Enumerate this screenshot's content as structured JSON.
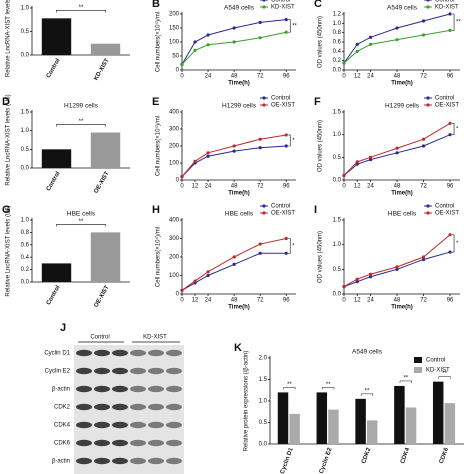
{
  "chart_data": [
    {
      "type": "bar",
      "y_label": "Relative LncRNA-XIST levels (U6)",
      "categories": [
        "Control",
        "KD-XIST"
      ],
      "values": [
        0.78,
        0.24
      ],
      "colors": [
        "#111111",
        "#999999"
      ],
      "ylim": [
        0,
        1.0
      ],
      "yticks": [
        {
          "value": 0,
          "label": "0.0"
        },
        {
          "value": 0.5,
          "label": "0.5"
        },
        {
          "value": 1.0,
          "label": "1.0"
        }
      ],
      "annotation": "**"
    },
    {
      "type": "line",
      "panel": "B",
      "title": "A549 cells",
      "y_label": "Cell numbers(×10⁴)/ml",
      "x_label": "Time(h)",
      "x": [
        0,
        12,
        24,
        48,
        72,
        96
      ],
      "series": [
        {
          "name": "Control",
          "color": "#2b2b8f",
          "values": [
            20,
            100,
            125,
            150,
            170,
            180
          ]
        },
        {
          "name": "KD-XIST",
          "color": "#3aa02d",
          "values": [
            20,
            70,
            90,
            100,
            115,
            135
          ]
        }
      ],
      "xlim": [
        0,
        105
      ],
      "xticks": [
        0,
        24,
        48,
        72,
        96
      ],
      "ylim": [
        0,
        200
      ],
      "yticks": [
        0,
        50,
        100,
        150,
        200
      ],
      "annotation": "**"
    },
    {
      "type": "line",
      "panel": "C",
      "title": "A549 cells",
      "y_label": "OD values (450nm)",
      "x_label": "Time(h)",
      "x": [
        0,
        12,
        24,
        48,
        72,
        96
      ],
      "series": [
        {
          "name": "Control",
          "color": "#2b2b8f",
          "values": [
            0.15,
            0.55,
            0.7,
            0.9,
            1.05,
            1.2
          ]
        },
        {
          "name": "KD-XIST",
          "color": "#3aa02d",
          "values": [
            0.15,
            0.4,
            0.55,
            0.65,
            0.75,
            0.85
          ]
        }
      ],
      "xlim": [
        0,
        105
      ],
      "xticks": [
        0,
        12,
        24,
        48,
        72,
        96
      ],
      "ylim": [
        0,
        1.2
      ],
      "yticks": [
        {
          "value": 0,
          "label": "0.0"
        },
        {
          "value": 0.2,
          "label": "0.2"
        },
        {
          "value": 0.4,
          "label": "0.4"
        },
        {
          "value": 0.6,
          "label": "0.6"
        },
        {
          "value": 0.8,
          "label": "0.8"
        },
        {
          "value": 1.0,
          "label": "1.0"
        },
        {
          "value": 1.2,
          "label": "1.2"
        }
      ],
      "annotation": "**"
    },
    {
      "type": "bar",
      "panel": "D",
      "title": "H1299 cells",
      "y_label": "Relative LncRNA-XIST levels (U6)",
      "categories": [
        "Control",
        "OE-XIST"
      ],
      "values": [
        0.5,
        0.95
      ],
      "colors": [
        "#111111",
        "#999999"
      ],
      "ylim": [
        0,
        1.5
      ],
      "yticks": [
        {
          "value": 0,
          "label": "0.0"
        },
        {
          "value": 0.5,
          "label": "0.5"
        },
        {
          "value": 1.0,
          "label": "1.0"
        },
        {
          "value": 1.5,
          "label": "1.5"
        }
      ],
      "annotation": "**"
    },
    {
      "type": "line",
      "panel": "E",
      "title": "H1299 cells",
      "y_label": "Cell numbers(×10⁴)/ml",
      "x_label": "Time(h)",
      "x": [
        0,
        12,
        24,
        48,
        72,
        96
      ],
      "series": [
        {
          "name": "Control",
          "color": "#2b2b8f",
          "values": [
            20,
            100,
            140,
            170,
            190,
            200
          ]
        },
        {
          "name": "OE-XIST",
          "color": "#c0282d",
          "values": [
            20,
            110,
            160,
            200,
            240,
            265
          ]
        }
      ],
      "xlim": [
        0,
        105
      ],
      "xticks": [
        0,
        12,
        24,
        48,
        72,
        96
      ],
      "ylim": [
        0,
        400
      ],
      "yticks": [
        0,
        100,
        200,
        300,
        400
      ],
      "annotation": "*"
    },
    {
      "type": "line",
      "panel": "F",
      "title": "H1299 cells",
      "y_label": "OD values (450nm)",
      "x_label": "Time(h)",
      "x": [
        0,
        12,
        24,
        48,
        72,
        96
      ],
      "series": [
        {
          "name": "Control",
          "color": "#2b2b8f",
          "values": [
            0.1,
            0.35,
            0.45,
            0.6,
            0.75,
            1.0
          ]
        },
        {
          "name": "OE-XIST",
          "color": "#c0282d",
          "values": [
            0.1,
            0.4,
            0.5,
            0.7,
            0.9,
            1.25
          ]
        }
      ],
      "xlim": [
        0,
        105
      ],
      "xticks": [
        0,
        12,
        24,
        48,
        72,
        96
      ],
      "ylim": [
        0,
        1.5
      ],
      "yticks": [
        {
          "value": 0,
          "label": "0.0"
        },
        {
          "value": 0.5,
          "label": "0.5"
        },
        {
          "value": 1.0,
          "label": "1.0"
        },
        {
          "value": 1.5,
          "label": "1.5"
        }
      ],
      "annotation": "*"
    },
    {
      "type": "bar",
      "panel": "G",
      "title": "HBE cells",
      "y_label": "Relative LncRNA-XIST levels (U6)",
      "categories": [
        "Control",
        "OE-XIST"
      ],
      "values": [
        0.3,
        0.8
      ],
      "colors": [
        "#111111",
        "#999999"
      ],
      "ylim": [
        0,
        1.0
      ],
      "yticks": [
        {
          "value": 0,
          "label": "0.0"
        },
        {
          "value": 0.2,
          "label": "0.2"
        },
        {
          "value": 0.4,
          "label": "0.4"
        },
        {
          "value": 0.6,
          "label": "0.6"
        },
        {
          "value": 0.8,
          "label": "0.8"
        },
        {
          "value": 1.0,
          "label": "1.0"
        }
      ],
      "annotation": "**"
    },
    {
      "type": "line",
      "panel": "H",
      "title": "HBE cells",
      "y_label": "Cell numbers(×10⁴)/ml",
      "x_label": "Time(h)",
      "x": [
        0,
        12,
        24,
        48,
        72,
        96
      ],
      "series": [
        {
          "name": "Control",
          "color": "#2b2b8f",
          "values": [
            20,
            60,
            100,
            160,
            220,
            220
          ]
        },
        {
          "name": "OE-XIST",
          "color": "#c0282d",
          "values": [
            20,
            70,
            120,
            200,
            270,
            300
          ]
        }
      ],
      "xlim": [
        0,
        105
      ],
      "xticks": [
        0,
        12,
        24,
        48,
        72,
        96
      ],
      "ylim": [
        0,
        400
      ],
      "yticks": [
        0,
        100,
        200,
        300,
        400
      ],
      "annotation": "*"
    },
    {
      "type": "line",
      "panel": "I",
      "title": "HBE cells",
      "y_label": "OD values (450nm)",
      "x_label": "Time(h)",
      "x": [
        0,
        12,
        24,
        48,
        72,
        96
      ],
      "series": [
        {
          "name": "Control",
          "color": "#2b2b8f",
          "values": [
            0.15,
            0.25,
            0.35,
            0.5,
            0.7,
            0.85
          ]
        },
        {
          "name": "OE-XIST",
          "color": "#c0282d",
          "values": [
            0.15,
            0.3,
            0.4,
            0.55,
            0.75,
            1.2
          ]
        }
      ],
      "xlim": [
        0,
        105
      ],
      "xticks": [
        0,
        12,
        24,
        48,
        72,
        96
      ],
      "ylim": [
        0,
        1.5
      ],
      "yticks": [
        {
          "value": 0,
          "label": "0.0"
        },
        {
          "value": 0.5,
          "label": "0.5"
        },
        {
          "value": 1.0,
          "label": "1.0"
        },
        {
          "value": 1.5,
          "label": "1.5"
        }
      ],
      "annotation": "*"
    },
    {
      "type": "grouped-bar",
      "panel": "K",
      "title": "A549 cells",
      "y_label": "Relative protein expressions (/β-actin)",
      "categories": [
        "Cyclin D1",
        "Cyclin E2",
        "CDK2",
        "CDK4",
        "CDK6"
      ],
      "series": [
        {
          "name": "Control",
          "color": "#111111",
          "values": [
            1.2,
            1.2,
            1.05,
            1.35,
            1.45
          ]
        },
        {
          "name": "KD-XIST",
          "color": "#aaaaaa",
          "values": [
            0.7,
            0.8,
            0.55,
            0.85,
            0.95
          ]
        }
      ],
      "ylim": [
        0,
        2.0
      ],
      "yticks": [
        {
          "value": 0,
          "label": "0.0"
        },
        {
          "value": 0.5,
          "label": "0.5"
        },
        {
          "value": 1.0,
          "label": "1.0"
        },
        {
          "value": 1.5,
          "label": "1.5"
        },
        {
          "value": 2.0,
          "label": "2.0"
        }
      ],
      "annotation": "**"
    }
  ],
  "blot": {
    "panel": "J",
    "groups": [
      "Control",
      "KD-XIST"
    ],
    "rows": [
      "Cyclin D1",
      "Cyclin E2",
      "β-actin",
      "CDK2",
      "CDK4",
      "CDK6",
      "β-actin"
    ]
  }
}
